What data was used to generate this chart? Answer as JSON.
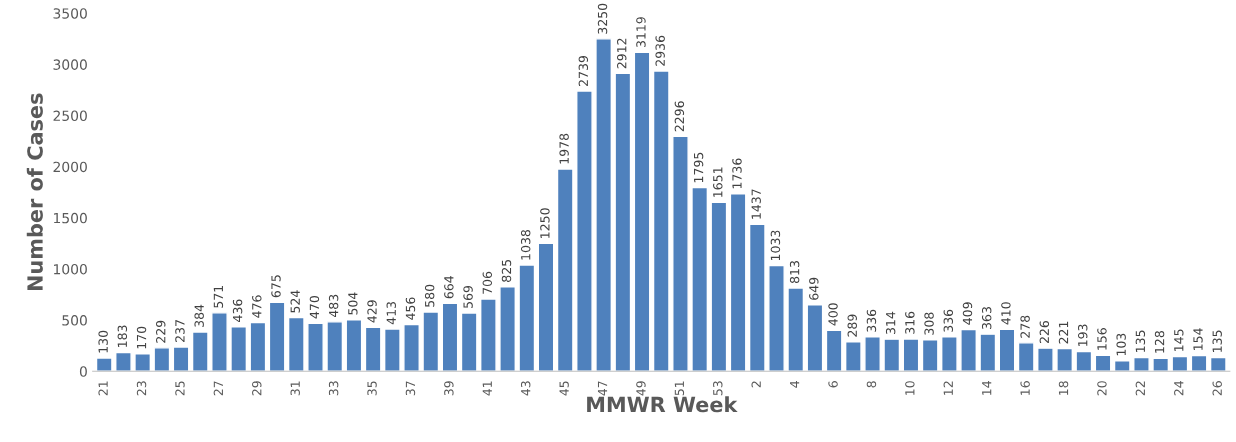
{
  "chart_data": {
    "type": "bar",
    "xlabel": "MMWR Week",
    "ylabel": "Number of Cases",
    "categories": [
      "21",
      null,
      "23",
      null,
      "25",
      null,
      "27",
      null,
      "29",
      null,
      "31",
      null,
      "33",
      null,
      "35",
      null,
      "37",
      null,
      "39",
      null,
      "41",
      null,
      "43",
      null,
      "45",
      null,
      "47",
      null,
      "49",
      null,
      "51",
      null,
      "53",
      null,
      "2",
      null,
      "4",
      null,
      "6",
      null,
      "8",
      null,
      "10",
      null,
      "12",
      null,
      "14",
      null,
      "16",
      null,
      "18",
      null,
      "20",
      null,
      "22",
      null,
      "24",
      null,
      "26"
    ],
    "values": [
      130,
      183,
      170,
      229,
      237,
      384,
      571,
      436,
      476,
      675,
      524,
      470,
      483,
      504,
      429,
      413,
      456,
      580,
      664,
      569,
      706,
      825,
      1038,
      1250,
      1978,
      2739,
      3250,
      2912,
      3119,
      2936,
      2296,
      1795,
      1651,
      1736,
      1437,
      1033,
      813,
      649,
      400,
      289,
      336,
      314,
      316,
      308,
      336,
      409,
      363,
      410,
      278,
      226,
      221,
      193,
      156,
      103,
      135,
      128,
      145,
      154,
      135
    ],
    "color": "#4f81bd",
    "ylim": [
      0,
      3500
    ],
    "yticks": [
      0,
      500,
      1000,
      1500,
      2000,
      2500,
      3000,
      3500
    ],
    "grid": false,
    "data_labels": true
  }
}
